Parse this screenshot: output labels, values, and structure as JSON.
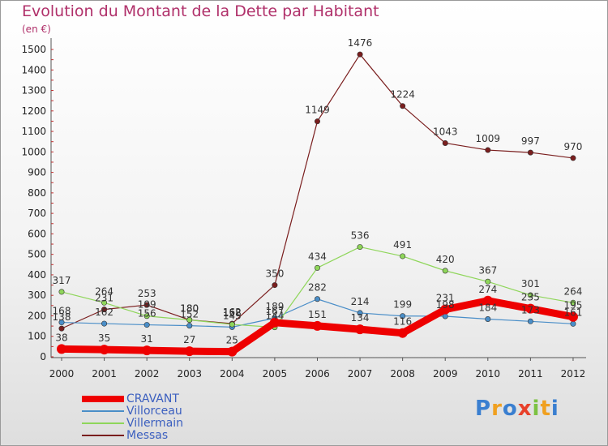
{
  "header": {
    "title": "Evolution du Montant de la Dette par Habitant",
    "unit": "(en €)"
  },
  "logo": {
    "text": "Proxiti",
    "colors": [
      "#3a7fd0",
      "#f0a020",
      "#3a7fd0",
      "#e8402a",
      "#7cc242",
      "#f0a020",
      "#3a7fd0"
    ]
  },
  "chart_data": {
    "type": "line",
    "title": "Evolution du Montant de la Dette par Habitant",
    "ylabel": "(en €)",
    "xlabel": "",
    "x": [
      "2000",
      "2001",
      "2002",
      "2003",
      "2004",
      "2005",
      "2006",
      "2007",
      "2008",
      "2009",
      "2010",
      "2011",
      "2012"
    ],
    "ylim": [
      0,
      1500
    ],
    "yticks": [
      "0",
      "100",
      "200",
      "300",
      "400",
      "500",
      "600",
      "700",
      "800",
      "900",
      "1000",
      "1100",
      "1200",
      "1300",
      "1400",
      "1500"
    ],
    "grid": false,
    "legend_position": "bottom-left",
    "series": [
      {
        "name": "Messas",
        "color": "#7a1e1e",
        "values": [
          138,
          231,
          253,
          180,
          162,
          350,
          1149,
          1476,
          1224,
          1043,
          1009,
          997,
          970
        ]
      },
      {
        "name": "Villorceau",
        "color": "#4a8ec8",
        "values": [
          168,
          162,
          156,
          152,
          145,
          189,
          282,
          214,
          199,
          198,
          184,
          173,
          161
        ]
      },
      {
        "name": "Villermain",
        "color": "#8fd65a",
        "values": [
          317,
          264,
          199,
          180,
          158,
          144,
          434,
          536,
          491,
          420,
          367,
          301,
          264
        ]
      },
      {
        "name": "CRAVANT",
        "color": "#ee0000",
        "values": [
          38,
          35,
          31,
          27,
          25,
          167,
          151,
          134,
          116,
          231,
          274,
          235,
          195
        ]
      }
    ],
    "labels": {
      "Messas": [
        "138",
        "231",
        "253",
        "180",
        "162",
        "350",
        "1149",
        "1476",
        "1224",
        "1043",
        "1009",
        "997",
        "970"
      ],
      "Villorceau": [
        "168",
        "162",
        "156",
        "152",
        "145",
        "189",
        "282",
        "214",
        "199",
        "198",
        "184",
        "173",
        "161"
      ],
      "Villermain": [
        "317",
        "264",
        "199",
        "180",
        "158",
        "144",
        "434",
        "536",
        "491",
        "420",
        "367",
        "301",
        "264"
      ],
      "CRAVANT": [
        "38",
        "35",
        "31",
        "27",
        "25",
        "167",
        "151",
        "134",
        "116",
        "231",
        "274",
        "235",
        "195"
      ]
    },
    "legend": [
      "CRAVANT",
      "Villorceau",
      "Villermain",
      "Messas"
    ]
  }
}
